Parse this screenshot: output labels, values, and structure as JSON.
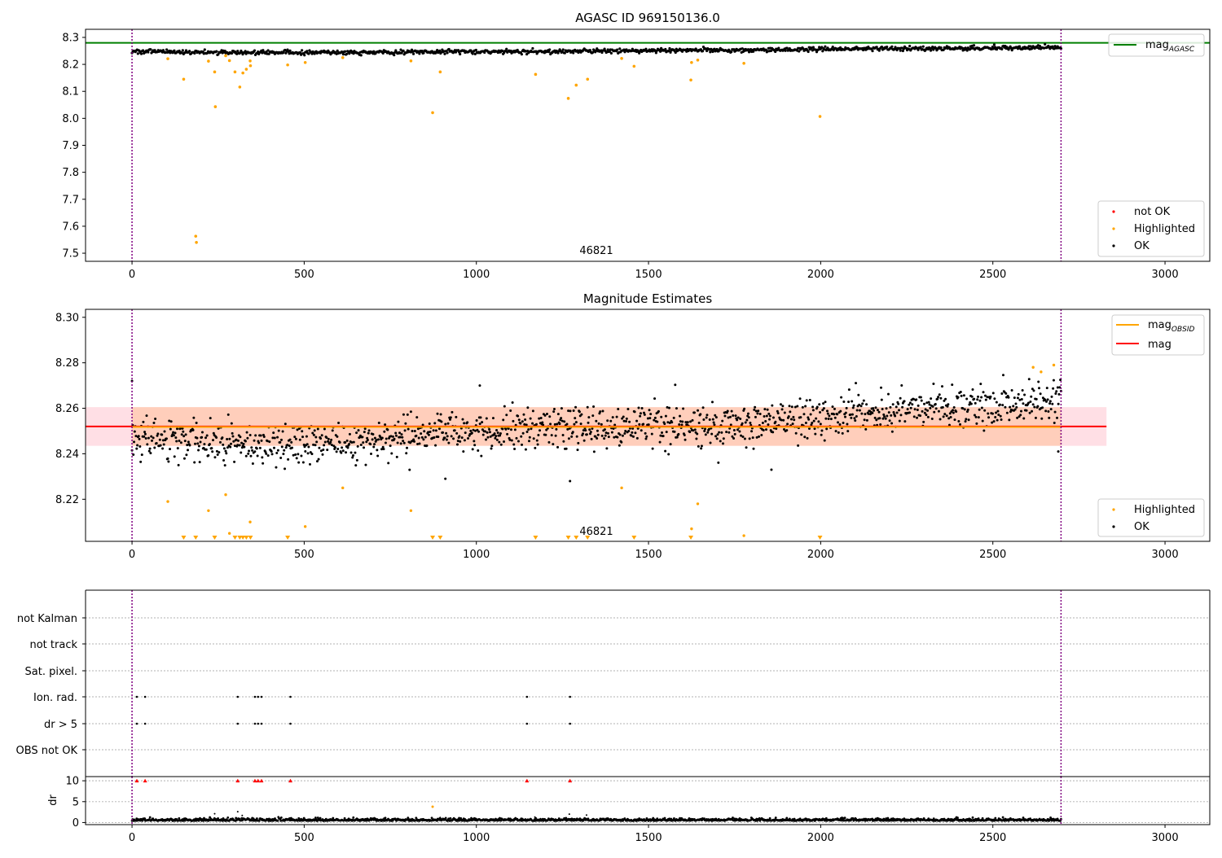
{
  "colors": {
    "ok": "#000000",
    "highlighted": "#ffa500",
    "not_ok": "#ff0000",
    "agasc_line": "#008000",
    "mag_line": "#ff0000",
    "mag_obsid_line": "#ffa500",
    "obsid_vline": "#800080",
    "band_fill": "#ffc0cb",
    "band_fill_obsid": "#ffc8a0",
    "grid": "#b0b0b0"
  },
  "chart_data": [
    {
      "type": "scatter",
      "title": "AGASC ID 969150136.0",
      "xlim": [
        -135,
        3130
      ],
      "ylim": [
        7.47,
        8.33
      ],
      "x_ticks": [
        0,
        500,
        1000,
        1500,
        2000,
        2500,
        3000
      ],
      "y_ticks": [
        7.5,
        7.6,
        7.7,
        7.8,
        7.9,
        8.0,
        8.1,
        8.2,
        8.3
      ],
      "hlines": [
        {
          "name": "mag_AGASC",
          "value": 8.28,
          "color": "#008000"
        }
      ],
      "obsid_bounds": [
        0,
        2698
      ],
      "obsid_label": "46821",
      "legends": [
        {
          "position": "top-right",
          "entries": [
            {
              "text": "mag",
              "sub": "AGASC",
              "color": "#008000",
              "marker": "line"
            }
          ]
        },
        {
          "position": "bottom-right",
          "entries": [
            {
              "text": "not OK",
              "color": "#ff0000",
              "marker": "dot"
            },
            {
              "text": "Highlighted",
              "color": "#ffa500",
              "marker": "dot"
            },
            {
              "text": "OK",
              "color": "#000000",
              "marker": "dot"
            }
          ]
        }
      ],
      "ok_trend": {
        "x": [
          0,
          300,
          600,
          900,
          1200,
          1500,
          1800,
          2100,
          2400,
          2698
        ],
        "y": [
          8.248,
          8.244,
          8.244,
          8.247,
          8.248,
          8.251,
          8.253,
          8.258,
          8.26,
          8.263
        ],
        "noise": 0.004,
        "n_points": 1100
      },
      "highlighted_points": [
        [
          104,
          8.221
        ],
        [
          150,
          8.145
        ],
        [
          185,
          7.563
        ],
        [
          187,
          7.54
        ],
        [
          222,
          8.212
        ],
        [
          240,
          8.172
        ],
        [
          242,
          8.043
        ],
        [
          272,
          8.232
        ],
        [
          283,
          8.214
        ],
        [
          299,
          8.172
        ],
        [
          313,
          8.116
        ],
        [
          322,
          8.168
        ],
        [
          332,
          8.182
        ],
        [
          343,
          8.213
        ],
        [
          344,
          8.195
        ],
        [
          452,
          8.198
        ],
        [
          503,
          8.207
        ],
        [
          612,
          8.225
        ],
        [
          810,
          8.213
        ],
        [
          873,
          8.021
        ],
        [
          895,
          8.172
        ],
        [
          1172,
          8.163
        ],
        [
          1267,
          8.074
        ],
        [
          1290,
          8.123
        ],
        [
          1323,
          8.145
        ],
        [
          1422,
          8.222
        ],
        [
          1458,
          8.193
        ],
        [
          1623,
          8.142
        ],
        [
          1625,
          8.207
        ],
        [
          1643,
          8.216
        ],
        [
          1777,
          8.204
        ],
        [
          1998,
          8.007
        ]
      ]
    },
    {
      "type": "scatter",
      "title": "Magnitude Estimates",
      "xlim": [
        -135,
        3130
      ],
      "ylim": [
        8.2015,
        8.3035
      ],
      "x_ticks": [
        0,
        500,
        1000,
        1500,
        2000,
        2500,
        3000
      ],
      "y_ticks": [
        8.22,
        8.24,
        8.26,
        8.28,
        8.3
      ],
      "y_tick_labels": [
        "8.22",
        "8.24",
        "8.26",
        "8.28",
        "8.30"
      ],
      "mag": 8.252,
      "mag_band": [
        8.2435,
        8.2605
      ],
      "mag_obsid": 8.2518,
      "mag_obsid_band": [
        8.2435,
        8.2605
      ],
      "mag_obsid_range": [
        0,
        2698
      ],
      "obsid_bounds": [
        0,
        2698
      ],
      "obsid_label": "46821",
      "legends": [
        {
          "position": "top-right",
          "entries": [
            {
              "text": "mag",
              "sub": "OBSID",
              "color": "#ffa500",
              "marker": "line"
            },
            {
              "text": "mag",
              "sub": "",
              "color": "#ff0000",
              "marker": "line"
            }
          ]
        },
        {
          "position": "bottom-right",
          "entries": [
            {
              "text": "Highlighted",
              "color": "#ffa500",
              "marker": "dot"
            },
            {
              "text": "OK",
              "color": "#000000",
              "marker": "dot"
            }
          ]
        }
      ],
      "ok_trend": {
        "x": [
          0,
          300,
          600,
          900,
          1200,
          1500,
          1800,
          2100,
          2400,
          2698
        ],
        "y": [
          8.247,
          8.244,
          8.245,
          8.249,
          8.251,
          8.252,
          8.253,
          8.258,
          8.26,
          8.263
        ],
        "noise": 0.0045,
        "n_points": 1400
      },
      "ok_outliers": [
        [
          0,
          8.272
        ],
        [
          1010,
          8.27
        ],
        [
          1272,
          8.228
        ],
        [
          910,
          8.229
        ],
        [
          1857,
          8.233
        ],
        [
          2690,
          8.241
        ]
      ],
      "highlighted_points": [
        [
          104,
          8.219
        ],
        [
          222,
          8.215
        ],
        [
          272,
          8.222
        ],
        [
          283,
          8.205
        ],
        [
          343,
          8.21
        ],
        [
          503,
          8.208
        ],
        [
          612,
          8.225
        ],
        [
          810,
          8.215
        ],
        [
          1422,
          8.225
        ],
        [
          1625,
          8.207
        ],
        [
          1643,
          8.218
        ],
        [
          1777,
          8.204
        ],
        [
          2617,
          8.278
        ],
        [
          2640,
          8.276
        ],
        [
          2677,
          8.279
        ]
      ],
      "highlighted_below": [
        150,
        185,
        240,
        299,
        313,
        322,
        332,
        344,
        452,
        873,
        895,
        1172,
        1267,
        1290,
        1323,
        1458,
        1623,
        1998
      ]
    },
    {
      "type": "scatter",
      "title": "",
      "xlim": [
        -135,
        3130
      ],
      "categories": [
        "not Kalman",
        "not track",
        "Sat. pixel.",
        "Ion. rad.",
        "dr > 5",
        "OBS not OK"
      ],
      "category_flags": {
        "Ion. rad.": [
          14,
          38,
          307,
          357,
          366,
          376,
          460,
          1147,
          1272
        ],
        "dr > 5": [
          14,
          38,
          307,
          357,
          366,
          376,
          460,
          1147,
          1272
        ]
      },
      "obsid_bounds": [
        0,
        2698
      ]
    },
    {
      "type": "scatter",
      "title": "",
      "ylabel": "dr",
      "xlim": [
        -135,
        3130
      ],
      "ylim": [
        -0.5,
        11
      ],
      "x_ticks": [
        0,
        500,
        1000,
        1500,
        2000,
        2500,
        3000
      ],
      "y_ticks": [
        0,
        5,
        10
      ],
      "ok_trend": {
        "x": [
          0,
          2698
        ],
        "y": [
          0.4,
          0.4
        ],
        "noise": 0.3,
        "n_points": 1600
      },
      "ok_outliers": [
        [
          240,
          2.1
        ],
        [
          307,
          2.6
        ],
        [
          320,
          1.7
        ],
        [
          1270,
          2.0
        ],
        [
          1320,
          1.8
        ],
        [
          895,
          1.2
        ],
        [
          1170,
          1.3
        ]
      ],
      "not_ok_points": [
        [
          14,
          10
        ],
        [
          38,
          10
        ],
        [
          307,
          10
        ],
        [
          357,
          10
        ],
        [
          366,
          10
        ],
        [
          376,
          10
        ],
        [
          460,
          10
        ],
        [
          1147,
          10
        ],
        [
          1272,
          10
        ]
      ],
      "highlighted_points": [
        [
          873,
          3.8
        ]
      ],
      "obsid_bounds": [
        0,
        2698
      ]
    }
  ]
}
